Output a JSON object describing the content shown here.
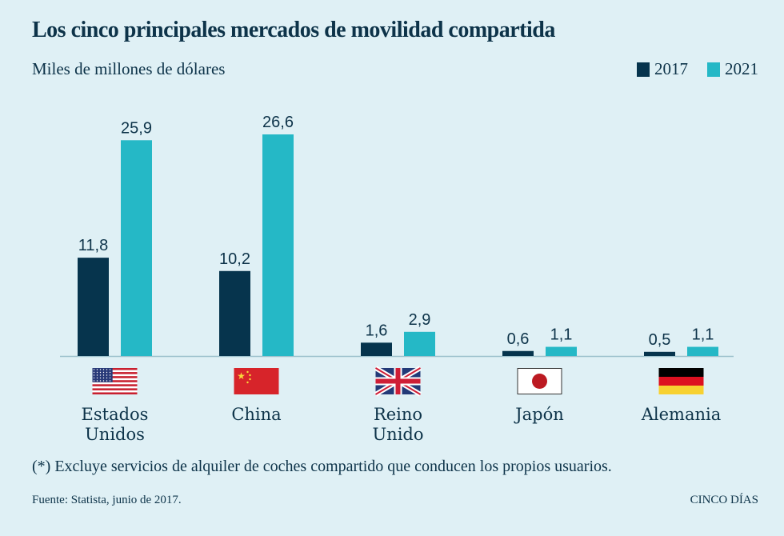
{
  "header": {
    "title": "Los cinco principales mercados de movilidad compartida",
    "subtitle": "Miles de millones de dólares"
  },
  "legend": [
    {
      "label": "2017",
      "color": "#06344d"
    },
    {
      "label": "2021",
      "color": "#25b8c6"
    }
  ],
  "footer": {
    "note": "(*) Excluye servicios de alquiler de coches compartido que conducen los propios usuarios.",
    "source": "Fuente: Statista, junio de 2017.",
    "brand": "CINCO DÍAS"
  },
  "chart_data": {
    "type": "bar",
    "title": "Los cinco principales mercados de movilidad compartida",
    "subtitle": "Miles de millones de dólares",
    "xlabel": "",
    "ylabel": "Miles de millones de dólares",
    "categories": [
      "Estados Unidos",
      "China",
      "Reino Unido",
      "Japón",
      "Alemania"
    ],
    "category_lines": [
      [
        "Estados",
        "Unidos"
      ],
      [
        "China"
      ],
      [
        "Reino",
        "Unido"
      ],
      [
        "Japón"
      ],
      [
        "Alemania"
      ]
    ],
    "flags": [
      "us-flag",
      "china-flag",
      "uk-flag",
      "japan-flag",
      "germany-flag"
    ],
    "series": [
      {
        "name": "2017",
        "color": "#06344d",
        "values": [
          11.8,
          10.2,
          1.6,
          0.6,
          0.5
        ],
        "labels": [
          "11,8",
          "10,2",
          "1,6",
          "0,6",
          "0,5"
        ]
      },
      {
        "name": "2021",
        "color": "#25b8c6",
        "values": [
          25.9,
          26.6,
          2.9,
          1.1,
          1.1
        ],
        "labels": [
          "25,9",
          "26,6",
          "2,9",
          "1,1",
          "1,1"
        ]
      }
    ],
    "ylim": [
      0,
      26.6
    ],
    "grid": false,
    "legend_position": "top-right"
  }
}
